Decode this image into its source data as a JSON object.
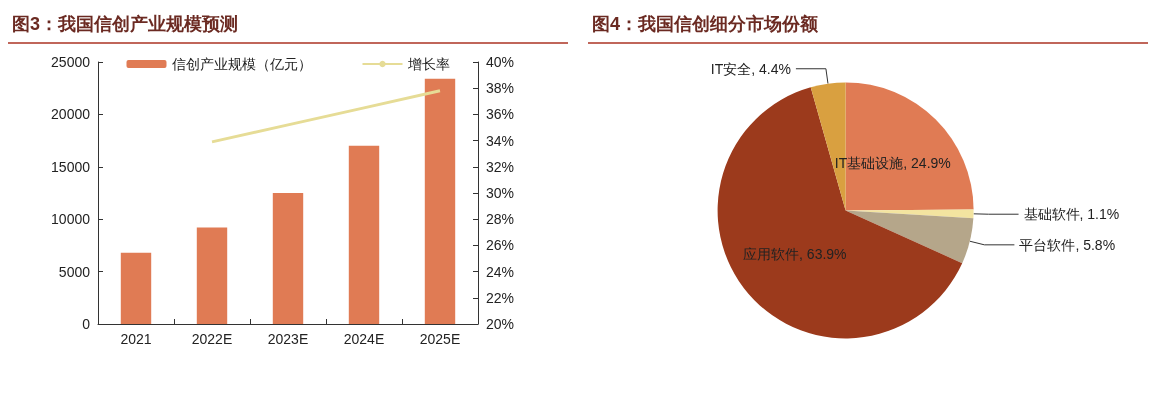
{
  "chart_data": [
    {
      "type": "bar",
      "title": "图3：我国信创产业规模预测",
      "categories": [
        "2021",
        "2022E",
        "2023E",
        "2024E",
        "2025E"
      ],
      "series": [
        {
          "name": "信创产业规模（亿元）",
          "type": "bar",
          "color": "#e07b54",
          "values": [
            6800,
            9200,
            12500,
            17000,
            23400
          ]
        },
        {
          "name": "增长率",
          "type": "line",
          "axis": "y2",
          "color": "#e6dc96",
          "values": [
            null,
            33.9,
            35.2,
            36.5,
            37.8
          ]
        }
      ],
      "ylim": [
        0,
        25000
      ],
      "yticks": [
        0,
        5000,
        10000,
        15000,
        20000,
        25000
      ],
      "y2lim": [
        20,
        40
      ],
      "y2ticks": [
        {
          "value": 20,
          "label": "20%"
        },
        {
          "value": 22,
          "label": "22%"
        },
        {
          "value": 24,
          "label": "24%"
        },
        {
          "value": 26,
          "label": "26%"
        },
        {
          "value": 28,
          "label": "28%"
        },
        {
          "value": 30,
          "label": "30%"
        },
        {
          "value": 32,
          "label": "32%"
        },
        {
          "value": 34,
          "label": "34%"
        },
        {
          "value": 36,
          "label": "36%"
        },
        {
          "value": 38,
          "label": "38%"
        },
        {
          "value": 40,
          "label": "40%"
        }
      ],
      "grid": false,
      "legend": "top",
      "marker": "none"
    },
    {
      "type": "pie",
      "title": "图4：我国信创细分市场份额",
      "categories": [
        "IT基础设施",
        "基础软件",
        "平台软件",
        "应用软件",
        "IT安全"
      ],
      "values": [
        24.9,
        1.1,
        5.8,
        63.9,
        4.4
      ],
      "value_labels": [
        "24.9%",
        "1.1%",
        "5.8%",
        "63.9%",
        "4.4%"
      ],
      "colors": [
        "#e07b54",
        "#f3e4a0",
        "#b5a68a",
        "#9c3a1c",
        "#d9a040"
      ],
      "legend": false
    }
  ]
}
